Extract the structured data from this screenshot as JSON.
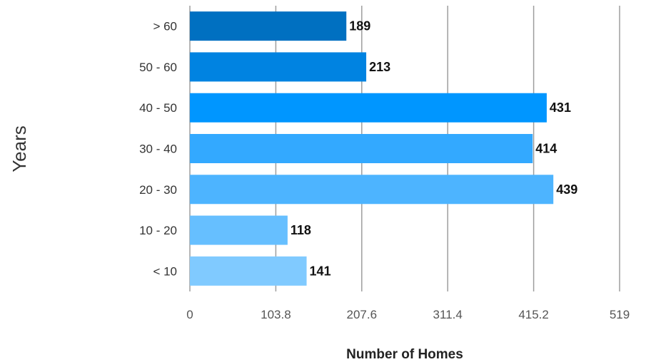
{
  "chart_data": {
    "type": "bar",
    "orientation": "horizontal",
    "categories": [
      "> 60",
      "50 - 60",
      "40 - 50",
      "30 - 40",
      "20 - 30",
      "10 - 20",
      "< 10"
    ],
    "values": [
      189,
      213,
      431,
      414,
      439,
      118,
      141
    ],
    "bar_colors": [
      "#0070C1",
      "#0083E1",
      "#0096FF",
      "#33A9FF",
      "#4DB4FF",
      "#66BFFF",
      "#80CAFF"
    ],
    "x_ticks": [
      "0",
      "103.8",
      "207.6",
      "311.4",
      "415.2",
      "519"
    ],
    "xlim": [
      0,
      519
    ],
    "xlabel": "Number of Homes",
    "ylabel": "Years",
    "grid": "vertical",
    "legend": "none"
  }
}
